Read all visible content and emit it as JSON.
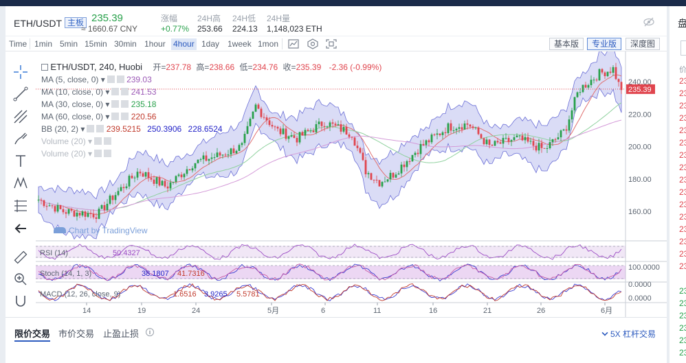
{
  "header": {
    "pair": "ETH/USDT",
    "main_badge": "主板",
    "price": "235.39",
    "price_cny": "≈ 1660.67 CNY",
    "stats": [
      {
        "label": "涨幅",
        "value": "+0.77%"
      },
      {
        "label": "24H高",
        "value": "253.66"
      },
      {
        "label": "24H低",
        "value": "224.13"
      },
      {
        "label": "24H量",
        "value": "1,148,023 ETH"
      }
    ]
  },
  "toolbar": {
    "timeframes": [
      "Time",
      "1min",
      "5min",
      "15min",
      "30min",
      "1hour",
      "4hour",
      "1day",
      "1week",
      "1mon"
    ],
    "active_timeframe": "4hour",
    "versions": [
      "基本版",
      "专业版",
      "深度图"
    ],
    "active_version": "专业版"
  },
  "legend": {
    "title": "ETH/USDT, 240, Huobi",
    "ohlc": {
      "open_label": "开=",
      "open": "237.78",
      "high_label": "高=",
      "high": "238.66",
      "low_label": "低=",
      "low": "234.76",
      "close_label": "收=",
      "close": "235.39",
      "change": "-2.36 (-0.99%)"
    },
    "indicators": [
      {
        "label": "MA (5, close, 0)",
        "values": [
          "239.03"
        ],
        "color": "#9b59b6"
      },
      {
        "label": "MA (10, close, 0)",
        "values": [
          "241.53"
        ],
        "color": "#9b59b6"
      },
      {
        "label": "MA (30, close, 0)",
        "values": [
          "235.18"
        ],
        "color": "#27a04a"
      },
      {
        "label": "MA (60, close, 0)",
        "values": [
          "220.56"
        ],
        "color": "#c0392b"
      },
      {
        "label": "BB (20, 2)",
        "values": [
          "239.5215",
          "250.3906",
          "228.6524"
        ],
        "colors": [
          "#c0392b",
          "#2323c8",
          "#2323c8"
        ]
      },
      {
        "label": "Volume (20)",
        "values": []
      },
      {
        "label": "Volume (20)",
        "values": []
      }
    ],
    "watermark": "Chart by TradingView"
  },
  "price_axis": {
    "ticks": [
      "240.00",
      "220.00",
      "200.00",
      "180.00",
      "160.00"
    ],
    "last_price": "235.39"
  },
  "oscillators": {
    "rsi": {
      "label": "RSI (14)",
      "value": "50.4327"
    },
    "stoch": {
      "label": "Stoch (14, 1, 3)",
      "values": [
        "38.1807",
        "41.7316"
      ],
      "axis": [
        "100.0000",
        "0.0000"
      ]
    },
    "macd": {
      "label": "MACD (12, 26, close, 9)",
      "values": [
        "1.6516",
        "3.9265",
        "5.5781"
      ],
      "axis": "0.0000"
    }
  },
  "time_axis": [
    "14",
    "19",
    "24",
    "5月",
    "6",
    "11",
    "16",
    "21",
    "26",
    "6月"
  ],
  "bottom": {
    "tabs": [
      "限价交易",
      "市价交易",
      "止盈止损"
    ],
    "active_tab": "限价交易",
    "leverage": "5X 杠杆交易"
  },
  "right_panel": {
    "title": "盘",
    "label": "价",
    "prices_red": [
      "23",
      "23",
      "23",
      "23",
      "23",
      "23",
      "23",
      "23",
      "23",
      "23",
      "23",
      "23",
      "23",
      "23",
      "23",
      "23"
    ],
    "prices_green": [
      "23",
      "23",
      "23",
      "23",
      "23",
      "23"
    ]
  },
  "colors": {
    "up": "#27a04a",
    "down": "#e0454e",
    "accent": "#2d5bbf",
    "band": "#c9cdf2"
  }
}
